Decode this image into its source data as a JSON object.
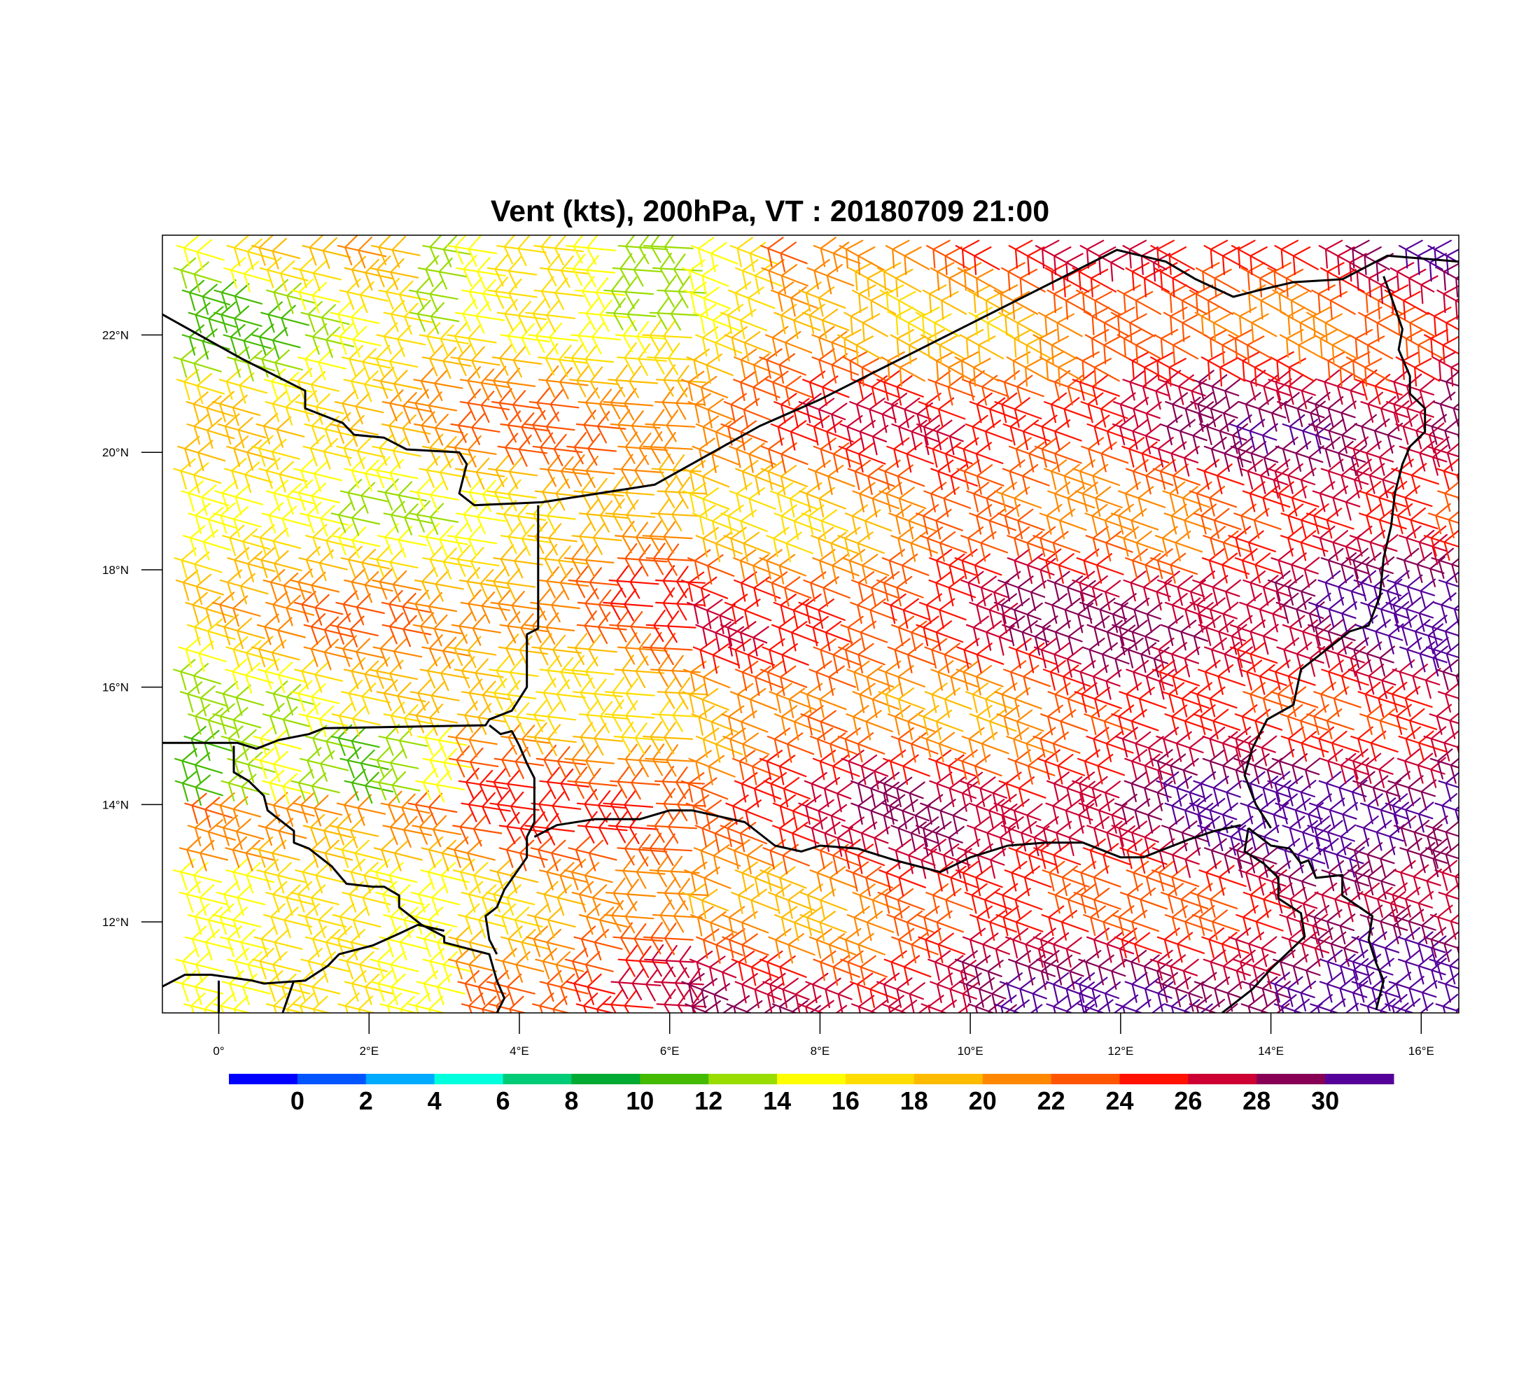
{
  "title": "Vent (kts), 200hPa, VT : 20180709  21:00",
  "map": {
    "lon_range": [
      -0.75,
      16.5
    ],
    "lat_range": [
      10.45,
      23.7
    ],
    "lon_ticks": [
      {
        "value": 0,
        "label": "0°"
      },
      {
        "value": 2,
        "label": "2°E"
      },
      {
        "value": 4,
        "label": "4°E"
      },
      {
        "value": 6,
        "label": "6°E"
      },
      {
        "value": 8,
        "label": "8°E"
      },
      {
        "value": 10,
        "label": "10°E"
      },
      {
        "value": 12,
        "label": "12°E"
      },
      {
        "value": 14,
        "label": "14°E"
      },
      {
        "value": 16,
        "label": "16°E"
      }
    ],
    "lat_ticks": [
      {
        "value": 22,
        "label": "22°N"
      },
      {
        "value": 20,
        "label": "20°N"
      },
      {
        "value": 18,
        "label": "18°N"
      },
      {
        "value": 16,
        "label": "16°N"
      },
      {
        "value": 14,
        "label": "14°N"
      },
      {
        "value": 12,
        "label": "12°N"
      }
    ],
    "borders": [
      [
        [
          -0.75,
          22.35
        ],
        [
          0.3,
          21.6
        ],
        [
          1.15,
          21.05
        ],
        [
          1.15,
          20.75
        ],
        [
          1.65,
          20.5
        ],
        [
          1.8,
          20.3
        ],
        [
          2.2,
          20.25
        ],
        [
          2.5,
          20.05
        ],
        [
          3.2,
          20.0
        ],
        [
          3.3,
          19.8
        ],
        [
          3.25,
          19.55
        ],
        [
          3.2,
          19.3
        ],
        [
          3.4,
          19.1
        ],
        [
          4.3,
          19.15
        ],
        [
          5.8,
          19.45
        ],
        [
          7.2,
          20.45
        ],
        [
          8.0,
          20.9
        ],
        [
          11.95,
          23.45
        ],
        [
          12.6,
          23.25
        ],
        [
          13.0,
          22.95
        ],
        [
          13.5,
          22.65
        ],
        [
          13.8,
          22.75
        ],
        [
          14.3,
          22.9
        ],
        [
          14.95,
          22.95
        ],
        [
          15.55,
          23.35
        ],
        [
          16.5,
          23.25
        ]
      ],
      [
        [
          4.25,
          19.1
        ],
        [
          4.25,
          17.0
        ],
        [
          4.1,
          16.9
        ],
        [
          4.1,
          16.0
        ],
        [
          3.9,
          15.6
        ],
        [
          3.6,
          15.45
        ],
        [
          3.55,
          15.35
        ],
        [
          1.4,
          15.3
        ],
        [
          1.2,
          15.2
        ],
        [
          0.8,
          15.1
        ],
        [
          0.5,
          14.95
        ],
        [
          0.25,
          15.05
        ],
        [
          -0.75,
          15.05
        ]
      ],
      [
        [
          0.2,
          15.0
        ],
        [
          0.2,
          14.55
        ],
        [
          0.4,
          14.4
        ],
        [
          0.6,
          14.15
        ],
        [
          0.65,
          13.9
        ],
        [
          0.9,
          13.65
        ],
        [
          1.0,
          13.55
        ],
        [
          1.0,
          13.35
        ],
        [
          1.2,
          13.25
        ],
        [
          1.5,
          12.95
        ],
        [
          1.7,
          12.65
        ],
        [
          2.05,
          12.6
        ],
        [
          2.2,
          12.6
        ],
        [
          2.4,
          12.45
        ],
        [
          2.4,
          12.25
        ],
        [
          2.7,
          11.95
        ],
        [
          3.0,
          11.75
        ],
        [
          3.0,
          11.65
        ],
        [
          3.3,
          11.55
        ],
        [
          3.6,
          11.45
        ],
        [
          3.7,
          11.0
        ],
        [
          3.8,
          10.7
        ],
        [
          3.7,
          10.45
        ]
      ],
      [
        [
          3.6,
          15.35
        ],
        [
          3.75,
          15.2
        ],
        [
          3.9,
          15.25
        ],
        [
          4.0,
          15.0
        ],
        [
          4.1,
          14.7
        ],
        [
          4.2,
          14.45
        ],
        [
          4.2,
          14.05
        ],
        [
          4.2,
          13.7
        ],
        [
          4.1,
          13.45
        ],
        [
          4.1,
          13.1
        ],
        [
          3.8,
          12.55
        ],
        [
          3.7,
          12.25
        ],
        [
          3.55,
          12.1
        ],
        [
          3.6,
          11.7
        ],
        [
          3.7,
          11.45
        ]
      ],
      [
        [
          4.2,
          13.45
        ],
        [
          4.5,
          13.65
        ],
        [
          5.0,
          13.75
        ],
        [
          5.6,
          13.75
        ],
        [
          6.0,
          13.9
        ],
        [
          6.3,
          13.9
        ],
        [
          7.0,
          13.7
        ],
        [
          7.4,
          13.3
        ],
        [
          7.75,
          13.2
        ],
        [
          8.0,
          13.3
        ],
        [
          8.5,
          13.25
        ],
        [
          9.0,
          13.05
        ],
        [
          9.6,
          12.85
        ],
        [
          10.0,
          13.1
        ],
        [
          10.5,
          13.3
        ],
        [
          11.0,
          13.35
        ],
        [
          11.5,
          13.35
        ],
        [
          12.0,
          13.1
        ],
        [
          12.3,
          13.1
        ],
        [
          12.9,
          13.4
        ],
        [
          13.25,
          13.55
        ],
        [
          13.6,
          13.65
        ]
      ],
      [
        [
          15.5,
          23.0
        ],
        [
          15.6,
          22.65
        ],
        [
          15.75,
          22.1
        ],
        [
          15.7,
          21.75
        ],
        [
          15.85,
          21.3
        ],
        [
          15.85,
          21.0
        ],
        [
          16.05,
          20.75
        ],
        [
          16.05,
          20.35
        ],
        [
          15.85,
          20.1
        ],
        [
          15.75,
          19.8
        ],
        [
          15.65,
          19.3
        ],
        [
          15.6,
          18.75
        ],
        [
          15.5,
          18.2
        ],
        [
          15.45,
          17.55
        ],
        [
          15.3,
          17.05
        ],
        [
          15.05,
          16.95
        ],
        [
          14.4,
          16.3
        ],
        [
          14.3,
          15.7
        ],
        [
          13.95,
          15.45
        ],
        [
          13.75,
          14.95
        ],
        [
          13.65,
          14.5
        ],
        [
          13.8,
          14.0
        ],
        [
          14.0,
          13.6
        ]
      ],
      [
        [
          13.7,
          13.6
        ],
        [
          14.0,
          13.3
        ],
        [
          14.25,
          13.25
        ],
        [
          14.4,
          13.0
        ],
        [
          14.5,
          13.05
        ],
        [
          14.6,
          12.75
        ],
        [
          14.95,
          12.8
        ],
        [
          14.95,
          12.45
        ],
        [
          15.35,
          12.1
        ],
        [
          15.3,
          11.7
        ],
        [
          15.4,
          11.3
        ],
        [
          15.5,
          11.0
        ],
        [
          15.4,
          10.5
        ]
      ],
      [
        [
          13.7,
          13.6
        ],
        [
          13.65,
          13.2
        ],
        [
          13.9,
          13.0
        ],
        [
          14.1,
          12.75
        ],
        [
          14.1,
          12.4
        ],
        [
          14.4,
          12.15
        ],
        [
          14.45,
          11.75
        ],
        [
          14.0,
          11.2
        ],
        [
          13.75,
          10.85
        ],
        [
          13.35,
          10.45
        ]
      ],
      [
        [
          -0.75,
          10.9
        ],
        [
          -0.45,
          11.1
        ],
        [
          -0.1,
          11.1
        ],
        [
          0.45,
          11.0
        ],
        [
          0.6,
          10.95
        ],
        [
          1.15,
          11.0
        ],
        [
          1.45,
          11.25
        ],
        [
          1.6,
          11.45
        ],
        [
          2.05,
          11.6
        ],
        [
          2.4,
          11.8
        ],
        [
          2.65,
          11.95
        ],
        [
          3.0,
          11.85
        ]
      ],
      [
        [
          0.0,
          11.0
        ],
        [
          0.0,
          10.45
        ]
      ],
      [
        [
          1.0,
          11.0
        ],
        [
          0.85,
          10.45
        ]
      ]
    ]
  },
  "colorbar": {
    "colors": [
      "#0000ff",
      "#0055ff",
      "#00aaff",
      "#00ffdd",
      "#00cc77",
      "#00aa33",
      "#44bb00",
      "#99dd00",
      "#ffff00",
      "#ffdd00",
      "#ffbb00",
      "#ff8800",
      "#ff5500",
      "#ff1100",
      "#cc0033",
      "#880055",
      "#550099"
    ],
    "labels": [
      "0",
      "2",
      "4",
      "6",
      "8",
      "10",
      "12",
      "14",
      "16",
      "18",
      "20",
      "22",
      "24",
      "26",
      "28",
      "30"
    ]
  }
}
